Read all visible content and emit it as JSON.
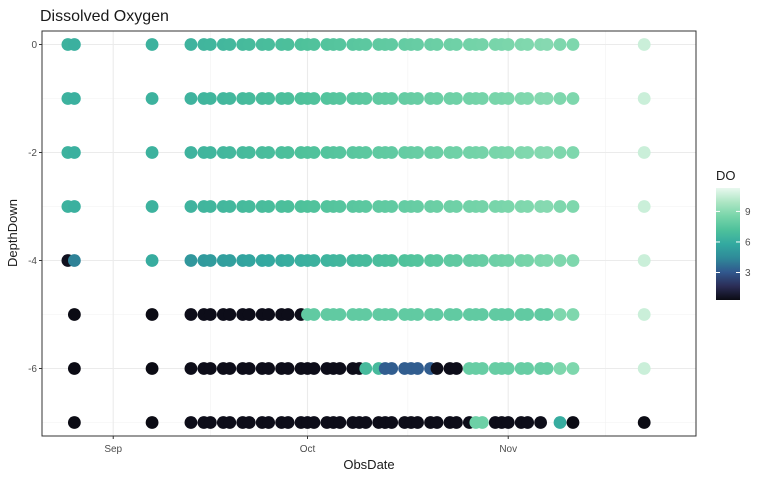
{
  "chart_data": {
    "type": "scatter",
    "title": "Dissolved Oxygen",
    "xlabel": "ObsDate",
    "ylabel": "DepthDown",
    "x_ticks": [
      "Sep",
      "Oct",
      "Nov"
    ],
    "x_tick_dates": [
      "2019-09-01",
      "2019-10-01",
      "2019-11-01"
    ],
    "xlim": [
      "2019-08-21",
      "2019-11-30"
    ],
    "y_ticks": [
      0,
      -2,
      -4,
      -6
    ],
    "ylim": [
      -7.25,
      0.25
    ],
    "grid": true,
    "legend": {
      "title": "DO",
      "position": "right",
      "ticks": [
        3,
        6,
        9
      ],
      "range": [
        0.3,
        11.3
      ],
      "colormap": [
        "#0b0b14",
        "#2b2d57",
        "#31588e",
        "#2f8a99",
        "#33a9a0",
        "#4ec19b",
        "#78d5aa",
        "#aee6c4",
        "#e8f8ee"
      ]
    },
    "depth_rows": [
      0,
      -1,
      -2,
      -3,
      -4,
      -5,
      -6,
      -7
    ],
    "points": [
      {
        "date": "2019-08-25",
        "depth": 0,
        "do": 6.3
      },
      {
        "date": "2019-08-25",
        "depth": -1,
        "do": 6.3
      },
      {
        "date": "2019-08-25",
        "depth": -2,
        "do": 6.3
      },
      {
        "date": "2019-08-25",
        "depth": -3,
        "do": 6.3
      },
      {
        "date": "2019-08-25",
        "depth": -4,
        "do": 0.5
      },
      {
        "date": "2019-08-26",
        "depth": 0,
        "do": 6.2
      },
      {
        "date": "2019-08-26",
        "depth": -1,
        "do": 6.2
      },
      {
        "date": "2019-08-26",
        "depth": -2,
        "do": 6.2
      },
      {
        "date": "2019-08-26",
        "depth": -3,
        "do": 6.2
      },
      {
        "date": "2019-08-26",
        "depth": -4,
        "do": 4.2
      },
      {
        "date": "2019-08-26",
        "depth": -5,
        "do": 0.3
      },
      {
        "date": "2019-08-26",
        "depth": -6,
        "do": 0.3
      },
      {
        "date": "2019-08-26",
        "depth": -7,
        "do": 0.3
      },
      {
        "date": "2019-09-07",
        "depth": 0,
        "do": 6.3
      },
      {
        "date": "2019-09-07",
        "depth": -1,
        "do": 6.3
      },
      {
        "date": "2019-09-07",
        "depth": -2,
        "do": 6.3
      },
      {
        "date": "2019-09-07",
        "depth": -3,
        "do": 6.3
      },
      {
        "date": "2019-09-07",
        "depth": -4,
        "do": 6.0
      },
      {
        "date": "2019-09-07",
        "depth": -5,
        "do": 0.3
      },
      {
        "date": "2019-09-07",
        "depth": -6,
        "do": 0.3
      },
      {
        "date": "2019-09-07",
        "depth": -7,
        "do": 0.3
      },
      {
        "date": "2019-11-22",
        "depth": 0,
        "do": 10.6
      },
      {
        "date": "2019-11-22",
        "depth": -1,
        "do": 10.6
      },
      {
        "date": "2019-11-22",
        "depth": -2,
        "do": 10.6
      },
      {
        "date": "2019-11-22",
        "depth": -3,
        "do": 10.6
      },
      {
        "date": "2019-11-22",
        "depth": -4,
        "do": 10.6
      },
      {
        "date": "2019-11-22",
        "depth": -5,
        "do": 10.6
      },
      {
        "date": "2019-11-22",
        "depth": -6,
        "do": 10.6
      },
      {
        "date": "2019-11-22",
        "depth": -7,
        "do": 0.3
      }
    ],
    "daily_series": {
      "start": "2019-09-13",
      "end": "2019-11-07",
      "skip_dates": [
        "2019-09-14",
        "2019-09-17",
        "2019-09-20",
        "2019-09-23",
        "2019-09-26",
        "2019-09-29",
        "2019-10-03",
        "2019-10-07",
        "2019-10-11",
        "2019-10-15",
        "2019-10-19",
        "2019-10-22",
        "2019-10-25",
        "2019-10-29",
        "2019-11-02",
        "2019-11-05"
      ],
      "do_surface_start": 6.4,
      "do_surface_end": 8.9,
      "rows": [
        {
          "depth": -4,
          "do_start": 5.0,
          "do_end": 8.7
        },
        {
          "depth": -5,
          "do": [
            {
              "from": "2019-09-13",
              "to": "2019-09-30",
              "do": 0.4
            },
            {
              "from": "2019-10-01",
              "to": "2019-11-07",
              "do": 7.8
            }
          ]
        },
        {
          "depth": -6,
          "do": [
            {
              "from": "2019-09-13",
              "to": "2019-10-09",
              "do": 0.4
            },
            {
              "from": "2019-10-10",
              "to": "2019-10-12",
              "do": 6.8
            },
            {
              "from": "2019-10-13",
              "to": "2019-10-20",
              "do": 3.2
            },
            {
              "from": "2019-10-21",
              "to": "2019-10-24",
              "do": 0.4
            },
            {
              "from": "2019-10-25",
              "to": "2019-11-07",
              "do": 8.0
            }
          ]
        },
        {
          "depth": -7,
          "do": [
            {
              "from": "2019-09-13",
              "to": "2019-10-26",
              "do": 0.4
            },
            {
              "from": "2019-10-27",
              "to": "2019-10-29",
              "do": 8.2
            },
            {
              "from": "2019-10-30",
              "to": "2019-11-06",
              "do": 0.4
            }
          ]
        }
      ]
    },
    "extra_points": [
      {
        "date": "2019-11-09",
        "depth": 0,
        "do": 8.7
      },
      {
        "date": "2019-11-09",
        "depth": -1,
        "do": 8.7
      },
      {
        "date": "2019-11-09",
        "depth": -2,
        "do": 8.7
      },
      {
        "date": "2019-11-09",
        "depth": -3,
        "do": 8.7
      },
      {
        "date": "2019-11-09",
        "depth": -4,
        "do": 8.7
      },
      {
        "date": "2019-11-09",
        "depth": -5,
        "do": 8.7
      },
      {
        "date": "2019-11-09",
        "depth": -6,
        "do": 8.7
      },
      {
        "date": "2019-11-09",
        "depth": -7,
        "do": 6.0
      },
      {
        "date": "2019-11-11",
        "depth": 0,
        "do": 8.7
      },
      {
        "date": "2019-11-11",
        "depth": -1,
        "do": 8.7
      },
      {
        "date": "2019-11-11",
        "depth": -2,
        "do": 8.7
      },
      {
        "date": "2019-11-11",
        "depth": -3,
        "do": 8.7
      },
      {
        "date": "2019-11-11",
        "depth": -4,
        "do": 8.7
      },
      {
        "date": "2019-11-11",
        "depth": -5,
        "do": 8.7
      },
      {
        "date": "2019-11-11",
        "depth": -6,
        "do": 8.7
      },
      {
        "date": "2019-11-11",
        "depth": -7,
        "do": 0.3
      }
    ]
  }
}
